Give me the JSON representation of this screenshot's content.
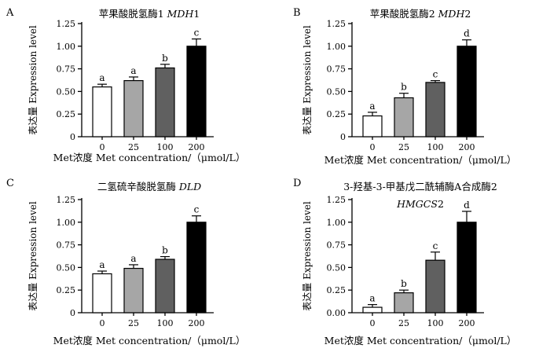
{
  "chart_data": [
    {
      "type": "bar",
      "panel": "A",
      "title": "苹果酸脱氢酶1",
      "title_gene": "MDH",
      "title_suffix": "1",
      "categories": [
        "0",
        "25",
        "100",
        "200"
      ],
      "values": [
        0.55,
        0.62,
        0.76,
        1.0
      ],
      "errors": [
        0.03,
        0.04,
        0.04,
        0.08
      ],
      "significance": [
        "a",
        "a",
        "b",
        "c"
      ],
      "bar_colors": [
        "#ffffff",
        "#a6a6a6",
        "#606060",
        "#000000"
      ],
      "ylabel": "表达量 Expression level",
      "xlabel": "Met浓度 Met concentration/（μmol/L）",
      "ylim": [
        0,
        1.25
      ],
      "yticks": [
        "0",
        "0.25",
        "0.50",
        "0.75",
        "1.00",
        "1.25"
      ]
    },
    {
      "type": "bar",
      "panel": "B",
      "title": "苹果酸脱氢酶2",
      "title_gene": "MDH",
      "title_suffix": "2",
      "categories": [
        "0",
        "25",
        "100",
        "200"
      ],
      "values": [
        0.23,
        0.43,
        0.6,
        1.0
      ],
      "errors": [
        0.04,
        0.05,
        0.02,
        0.07
      ],
      "significance": [
        "a",
        "b",
        "c",
        "d"
      ],
      "bar_colors": [
        "#ffffff",
        "#a6a6a6",
        "#606060",
        "#000000"
      ],
      "ylabel": "表达量 Expression level",
      "xlabel": "Met浓度 Met concentration/（μmol/L）",
      "ylim": [
        0,
        1.25
      ],
      "yticks": [
        "0",
        "0.25",
        "0.50",
        "0.75",
        "1.00",
        "1.25"
      ]
    },
    {
      "type": "bar",
      "panel": "C",
      "title": "二氢硫辛酸脱氢酶",
      "title_gene": "DLD",
      "title_suffix": "",
      "categories": [
        "0",
        "25",
        "100",
        "200"
      ],
      "values": [
        0.43,
        0.49,
        0.59,
        1.0
      ],
      "errors": [
        0.03,
        0.04,
        0.03,
        0.07
      ],
      "significance": [
        "a",
        "a",
        "b",
        "c"
      ],
      "bar_colors": [
        "#ffffff",
        "#a6a6a6",
        "#606060",
        "#000000"
      ],
      "ylabel": "表达量 Expression level",
      "xlabel": "Met浓度 Met concentration/（μmol/L）",
      "ylim": [
        0,
        1.25
      ],
      "yticks": [
        "0",
        "0.25",
        "0.50",
        "0.75",
        "1.00",
        "1.25"
      ]
    },
    {
      "type": "bar",
      "panel": "D",
      "title": "3-羟基-3-甲基戊二酰辅酶A合成酶2",
      "title_gene": "HMGCS",
      "title_suffix": "2",
      "categories": [
        "0",
        "25",
        "100",
        "200"
      ],
      "values": [
        0.06,
        0.22,
        0.58,
        1.0
      ],
      "errors": [
        0.03,
        0.03,
        0.09,
        0.12
      ],
      "significance": [
        "a",
        "b",
        "c",
        "d"
      ],
      "bar_colors": [
        "#ffffff",
        "#a6a6a6",
        "#606060",
        "#000000"
      ],
      "ylabel": "表达量 Expression level",
      "xlabel": "Met浓度 Met concentration/（μmol/L）",
      "ylim": [
        0,
        1.25
      ],
      "yticks": [
        "0",
        "0.00",
        "0.25",
        "0.50",
        "0.75",
        "1.00",
        "1.25"
      ]
    }
  ]
}
